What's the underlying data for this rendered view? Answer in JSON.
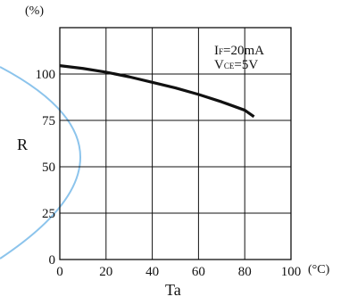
{
  "chart_data": {
    "type": "line",
    "title": "",
    "xlabel": "Ta",
    "ylabel": "R",
    "x_unit": "(°C)",
    "y_unit": "(%)",
    "xlim": [
      0,
      100
    ],
    "ylim": [
      0,
      125
    ],
    "x_ticks": [
      0,
      20,
      40,
      60,
      80,
      100
    ],
    "y_ticks": [
      0,
      25,
      50,
      75,
      100
    ],
    "x_tick_labels": [
      "0",
      "20",
      "40",
      "60",
      "80",
      "100"
    ],
    "y_tick_labels": [
      "0",
      "25",
      "50",
      "75",
      "100"
    ],
    "grid": true,
    "annotations": [
      {
        "id": "if",
        "main": "I",
        "sub": "F",
        "rest": "=20mA"
      },
      {
        "id": "vce",
        "main": "V",
        "sub": "CE",
        "rest": "=5V"
      }
    ],
    "series": [
      {
        "color": "#111111",
        "x": [
          0,
          10,
          20,
          30,
          40,
          50,
          60,
          70,
          80,
          84
        ],
        "y": [
          104.5,
          103.0,
          101.0,
          98.5,
          95.5,
          92.5,
          89.0,
          85.0,
          80.5,
          77.0
        ]
      }
    ],
    "decoration_color": "#8cc4ec"
  }
}
